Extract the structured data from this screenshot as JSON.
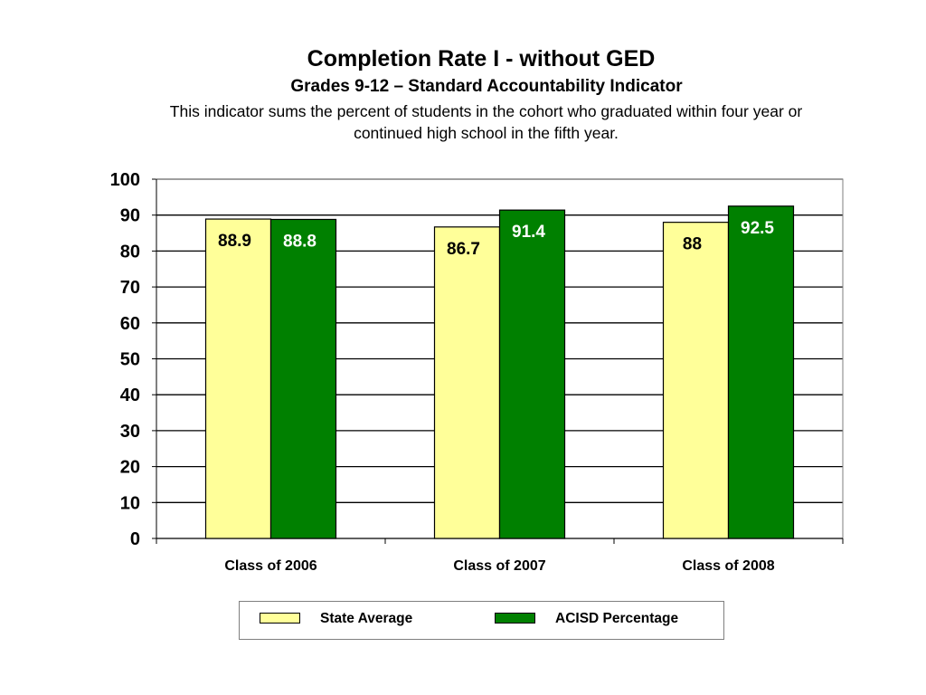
{
  "chart_data": {
    "type": "bar",
    "title": "Completion Rate I - without GED",
    "subtitle": "Grades 9-12 – Standard Accountability Indicator",
    "description": "This indicator sums the percent of students in the cohort who graduated within four year or continued high school in the fifth year.",
    "categories": [
      "Class of 2006",
      "Class of 2007",
      "Class of 2008"
    ],
    "series": [
      {
        "name": "State Average",
        "values": [
          88.9,
          86.7,
          88
        ],
        "labels": [
          "88.9",
          "86.7",
          "88"
        ],
        "color": "#FFFF99",
        "label_color": "#000000"
      },
      {
        "name": "ACISD Percentage",
        "values": [
          88.8,
          91.4,
          92.5
        ],
        "labels": [
          "88.8",
          "91.4",
          "92.5"
        ],
        "color": "#008000",
        "label_color": "#FFFFFF"
      }
    ],
    "ylim": [
      0,
      100
    ],
    "yticks": [
      0,
      10,
      20,
      30,
      40,
      50,
      60,
      70,
      80,
      90,
      100
    ],
    "xlabel": "",
    "ylabel": "",
    "grid": true,
    "legend_position": "bottom"
  }
}
